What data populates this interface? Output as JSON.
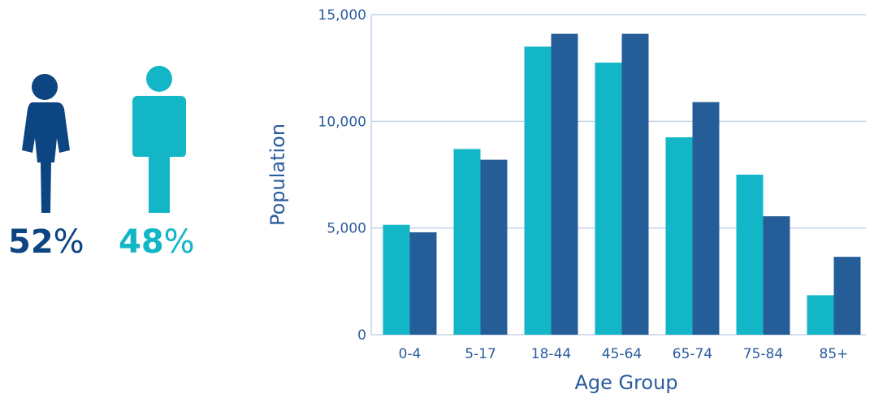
{
  "gender": {
    "female": {
      "value": "52",
      "unit": "%",
      "color": "#0d4582",
      "icon": "female-person-icon"
    },
    "male": {
      "value": "48",
      "unit": "%",
      "color": "#12b6c6",
      "icon": "male-person-icon"
    }
  },
  "chart_data": {
    "type": "bar",
    "title": "",
    "xlabel": "Age Group",
    "ylabel": "Population",
    "categories": [
      "0-4",
      "5-17",
      "18-44",
      "45-64",
      "65-74",
      "75-84",
      "85+"
    ],
    "series": [
      {
        "color": "#12b6c6",
        "values": [
          5150,
          8700,
          13500,
          12750,
          9250,
          7500,
          1850
        ]
      },
      {
        "color": "#255d98",
        "values": [
          4800,
          8200,
          14100,
          14100,
          10900,
          5550,
          3650
        ]
      }
    ],
    "ylim": [
      0,
      15000
    ],
    "yticks": [
      0,
      5000,
      10000,
      15000
    ],
    "ytick_labels": [
      "0",
      "5,000",
      "10,000",
      "15,000"
    ],
    "grid": true,
    "legend": "none"
  }
}
